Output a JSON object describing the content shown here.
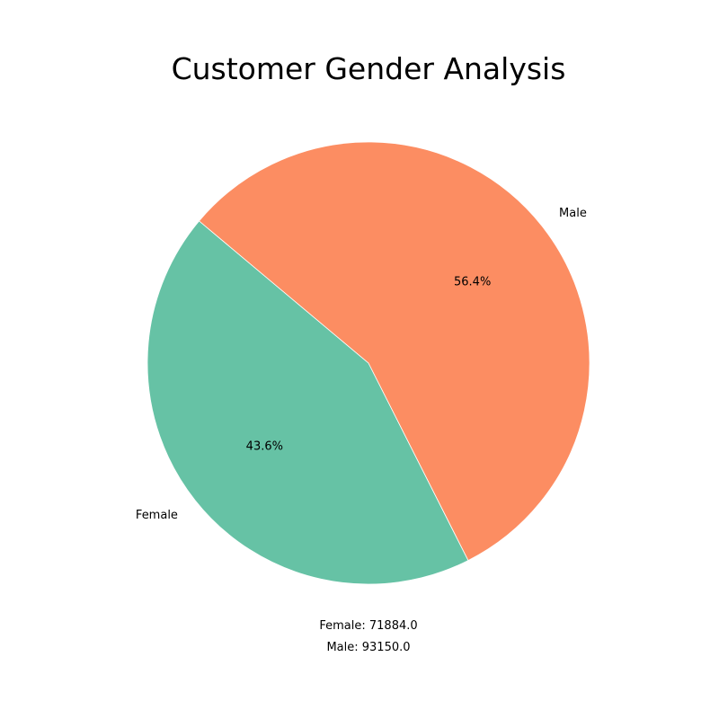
{
  "chart_data": {
    "type": "pie",
    "title": "Customer Gender Analysis",
    "categories": [
      "Female",
      "Male"
    ],
    "values": [
      71884.0,
      93150.0
    ],
    "percent_labels": [
      "43.6%",
      "56.4%"
    ],
    "colors": [
      "#66c2a5",
      "#fc8d62"
    ],
    "start_angle_deg": 140,
    "footnotes": [
      "Female: 71884.0",
      "Male: 93150.0"
    ]
  }
}
